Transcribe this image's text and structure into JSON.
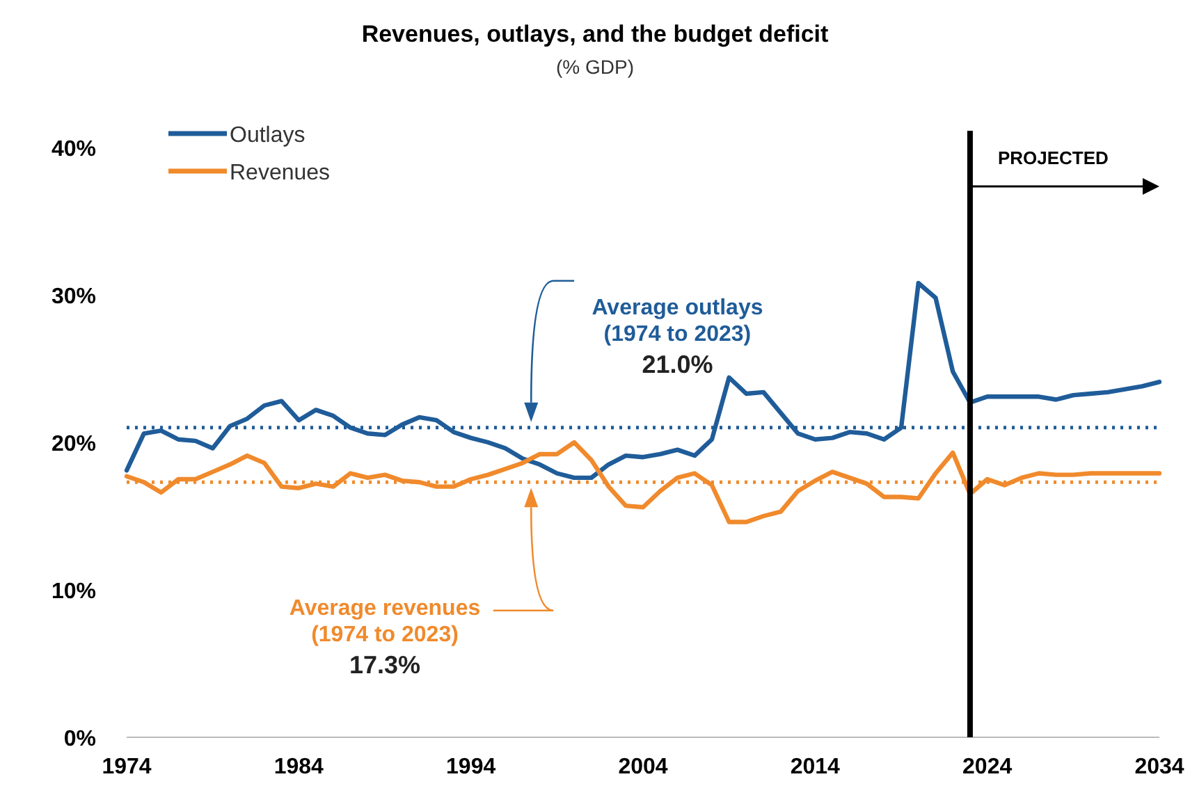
{
  "chart_data": {
    "type": "line",
    "title": "Revenues, outlays, and the budget deficit",
    "subtitle": "(% GDP)",
    "x": [
      1974,
      1975,
      1976,
      1977,
      1978,
      1979,
      1980,
      1981,
      1982,
      1983,
      1984,
      1985,
      1986,
      1987,
      1988,
      1989,
      1990,
      1991,
      1992,
      1993,
      1994,
      1995,
      1996,
      1997,
      1998,
      1999,
      2000,
      2001,
      2002,
      2003,
      2004,
      2005,
      2006,
      2007,
      2008,
      2009,
      2010,
      2011,
      2012,
      2013,
      2014,
      2015,
      2016,
      2017,
      2018,
      2019,
      2020,
      2021,
      2022,
      2023,
      2024,
      2025,
      2026,
      2027,
      2028,
      2029,
      2030,
      2031,
      2032,
      2033,
      2034
    ],
    "series": [
      {
        "name": "Outlays",
        "color": "#1f5c99",
        "values": [
          18.1,
          20.6,
          20.8,
          20.2,
          20.1,
          19.6,
          21.1,
          21.6,
          22.5,
          22.8,
          21.5,
          22.2,
          21.8,
          21.0,
          20.6,
          20.5,
          21.2,
          21.7,
          21.5,
          20.7,
          20.3,
          20.0,
          19.6,
          18.9,
          18.5,
          17.9,
          17.6,
          17.6,
          18.5,
          19.1,
          19.0,
          19.2,
          19.5,
          19.1,
          20.2,
          24.4,
          23.3,
          23.4,
          22.0,
          20.6,
          20.2,
          20.3,
          20.7,
          20.6,
          20.2,
          21.0,
          30.8,
          29.8,
          24.8,
          22.7,
          23.1,
          23.1,
          23.1,
          23.1,
          22.9,
          23.2,
          23.3,
          23.4,
          23.6,
          23.8,
          24.1
        ]
      },
      {
        "name": "Revenues",
        "color": "#f08a2c",
        "values": [
          17.7,
          17.3,
          16.6,
          17.5,
          17.5,
          18.0,
          18.5,
          19.1,
          18.6,
          17.0,
          16.9,
          17.2,
          17.0,
          17.9,
          17.6,
          17.8,
          17.4,
          17.3,
          17.0,
          17.0,
          17.5,
          17.8,
          18.2,
          18.6,
          19.2,
          19.2,
          20.0,
          18.8,
          17.0,
          15.7,
          15.6,
          16.7,
          17.6,
          17.9,
          17.1,
          14.6,
          14.6,
          15.0,
          15.3,
          16.7,
          17.4,
          18.0,
          17.6,
          17.2,
          16.3,
          16.3,
          16.2,
          17.9,
          19.3,
          16.5,
          17.5,
          17.1,
          17.6,
          17.9,
          17.8,
          17.8,
          17.9,
          17.9,
          17.9,
          17.9,
          17.9
        ]
      }
    ],
    "xlim": [
      1974,
      2034
    ],
    "xticks": [
      1974,
      1984,
      1994,
      2004,
      2014,
      2024,
      2034
    ],
    "ylim": [
      0,
      40
    ],
    "yticks": [
      {
        "value": 0,
        "label": "0%"
      },
      {
        "value": 10,
        "label": "10%"
      },
      {
        "value": 20,
        "label": "20%"
      },
      {
        "value": 30,
        "label": "30%"
      },
      {
        "value": 40,
        "label": "40%"
      }
    ],
    "grid": false,
    "legend": "top left",
    "marker": "none",
    "line_style": "solid",
    "ref_lines": [
      {
        "axis": "y",
        "value": 21.0,
        "label": "Average outlays (1974 to 2023)",
        "color": "#1f5c99",
        "line_style": "dotted"
      },
      {
        "axis": "y",
        "value": 17.3,
        "label": "Average revenues (1974 to 2023)",
        "color": "#f08a2c",
        "line_style": "dotted"
      },
      {
        "axis": "x",
        "value": 2023,
        "label": "PROJECTED",
        "color": "#000000",
        "line_style": "solid"
      }
    ],
    "annotations": [
      "21.0%",
      "17.3%"
    ]
  }
}
